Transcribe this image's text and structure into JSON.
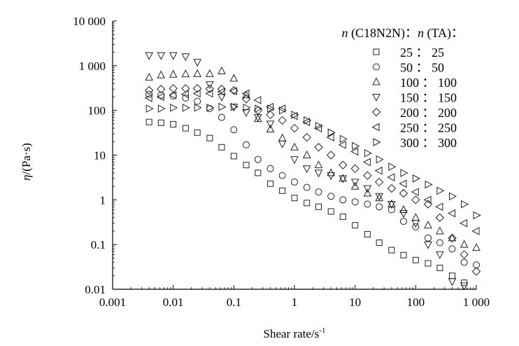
{
  "chart_data": {
    "type": "scatter",
    "title": "",
    "xlabel": "Shear rate/s",
    "xlabel_sup": "-1",
    "ylabel_italic": "η",
    "ylabel_rest": "/(Pa·s)",
    "x_scale": "log",
    "y_scale": "log",
    "xlim": [
      0.001,
      1000
    ],
    "ylim": [
      0.01,
      10000
    ],
    "x_ticks": [
      0.001,
      0.01,
      0.1,
      1,
      10,
      100,
      1000
    ],
    "x_tick_labels": [
      "0.001",
      "0.01",
      "0.1",
      "1",
      "10",
      "100",
      "1 000"
    ],
    "y_ticks": [
      0.01,
      0.1,
      1,
      10,
      100,
      1000,
      10000
    ],
    "y_tick_labels": [
      "0.01",
      "0.1",
      "1",
      "10",
      "100",
      "1 000",
      "10 000"
    ],
    "grid": false,
    "legend_position": "top-right",
    "legend_title": {
      "n1": "n",
      "mid": " (C18N2N)",
      "colon": "：",
      "n2": "n",
      "tail": " (TA)",
      "end": "："
    },
    "series": [
      {
        "name": "25 ： 25",
        "marker": "square",
        "points": [
          [
            0.004,
            55
          ],
          [
            0.0063,
            53
          ],
          [
            0.01,
            49
          ],
          [
            0.016,
            40
          ],
          [
            0.025,
            32
          ],
          [
            0.04,
            24
          ],
          [
            0.063,
            15
          ],
          [
            0.1,
            9.5
          ],
          [
            0.16,
            6
          ],
          [
            0.25,
            4
          ],
          [
            0.4,
            2.3
          ],
          [
            0.63,
            1.6
          ],
          [
            1,
            1.1
          ],
          [
            1.6,
            0.85
          ],
          [
            2.5,
            0.7
          ],
          [
            4,
            0.55
          ],
          [
            6.3,
            0.42
          ],
          [
            10,
            0.27
          ],
          [
            16,
            0.17
          ],
          [
            25,
            0.11
          ],
          [
            40,
            0.075
          ],
          [
            63,
            0.058
          ],
          [
            100,
            0.045
          ],
          [
            160,
            0.038
          ],
          [
            250,
            0.03
          ],
          [
            400,
            0.02
          ],
          [
            630,
            0.014
          ]
        ]
      },
      {
        "name": "50 ： 50",
        "marker": "circle",
        "points": [
          [
            0.004,
            230
          ],
          [
            0.0063,
            220
          ],
          [
            0.01,
            210
          ],
          [
            0.016,
            190
          ],
          [
            0.025,
            160
          ],
          [
            0.04,
            110
          ],
          [
            0.063,
            70
          ],
          [
            0.1,
            37
          ],
          [
            0.16,
            17
          ],
          [
            0.25,
            8
          ],
          [
            0.4,
            5
          ],
          [
            0.63,
            3.5
          ],
          [
            1,
            2.5
          ],
          [
            1.6,
            1.9
          ],
          [
            2.5,
            1.5
          ],
          [
            4,
            1.2
          ],
          [
            6.3,
            1.0
          ],
          [
            10,
            0.9
          ],
          [
            16,
            0.8
          ],
          [
            25,
            0.7
          ],
          [
            40,
            0.6
          ],
          [
            63,
            0.33
          ],
          [
            100,
            0.25
          ],
          [
            160,
            0.14
          ],
          [
            250,
            0.11
          ],
          [
            400,
            0.08
          ],
          [
            630,
            0.04
          ],
          [
            1000,
            0.035
          ]
        ]
      },
      {
        "name": "100 ： 100",
        "marker": "triangle-up",
        "points": [
          [
            0.004,
            550
          ],
          [
            0.0063,
            620
          ],
          [
            0.01,
            640
          ],
          [
            0.016,
            650
          ],
          [
            0.025,
            660
          ],
          [
            0.04,
            660
          ],
          [
            0.063,
            760
          ],
          [
            0.1,
            520
          ],
          [
            0.16,
            220
          ],
          [
            0.25,
            65
          ],
          [
            0.4,
            38
          ],
          [
            0.63,
            24
          ],
          [
            1,
            15
          ],
          [
            1.6,
            10
          ],
          [
            2.5,
            6
          ],
          [
            4,
            4
          ],
          [
            6.3,
            3
          ],
          [
            10,
            2
          ],
          [
            16,
            1.4
          ],
          [
            25,
            1.1
          ],
          [
            40,
            0.8
          ],
          [
            63,
            0.6
          ],
          [
            100,
            0.4
          ],
          [
            160,
            0.27
          ],
          [
            250,
            0.2
          ],
          [
            400,
            0.14
          ],
          [
            630,
            0.1
          ],
          [
            1000,
            0.085
          ]
        ]
      },
      {
        "name": "150 ： 150",
        "marker": "triangle-down",
        "points": [
          [
            0.004,
            1700
          ],
          [
            0.0063,
            1700
          ],
          [
            0.01,
            1700
          ],
          [
            0.016,
            1600
          ],
          [
            0.025,
            1200
          ],
          [
            0.04,
            380
          ],
          [
            0.063,
            200
          ],
          [
            0.1,
            120
          ],
          [
            0.16,
            90
          ],
          [
            0.25,
            70
          ],
          [
            0.4,
            50
          ],
          [
            0.63,
            18
          ],
          [
            1,
            8
          ],
          [
            1.6,
            5
          ],
          [
            2.5,
            4
          ],
          [
            4,
            3.5
          ],
          [
            6.3,
            3
          ],
          [
            10,
            2.5
          ],
          [
            16,
            1.8
          ],
          [
            25,
            1.2
          ],
          [
            40,
            0.8
          ],
          [
            63,
            0.5
          ],
          [
            100,
            0.3
          ],
          [
            160,
            0.1
          ],
          [
            250,
            0.06
          ],
          [
            400,
            0.015
          ],
          [
            630,
            0.012
          ]
        ]
      },
      {
        "name": "200 ： 200",
        "marker": "diamond",
        "points": [
          [
            0.004,
            280
          ],
          [
            0.0063,
            300
          ],
          [
            0.01,
            310
          ],
          [
            0.016,
            310
          ],
          [
            0.025,
            310
          ],
          [
            0.04,
            305
          ],
          [
            0.063,
            300
          ],
          [
            0.1,
            280
          ],
          [
            0.16,
            180
          ],
          [
            0.25,
            100
          ],
          [
            0.4,
            80
          ],
          [
            0.63,
            60
          ],
          [
            1,
            40
          ],
          [
            1.6,
            25
          ],
          [
            2.5,
            15
          ],
          [
            4,
            10
          ],
          [
            6.3,
            6
          ],
          [
            10,
            5
          ],
          [
            16,
            3.5
          ],
          [
            25,
            2.5
          ],
          [
            40,
            1.8
          ],
          [
            63,
            1.4
          ],
          [
            100,
            1.0
          ],
          [
            160,
            0.8
          ],
          [
            250,
            0.4
          ],
          [
            400,
            0.14
          ],
          [
            630,
            0.06
          ],
          [
            1000,
            0.025
          ]
        ]
      },
      {
        "name": "250 ： 250",
        "marker": "triangle-left",
        "points": [
          [
            0.004,
            190
          ],
          [
            0.0063,
            200
          ],
          [
            0.01,
            220
          ],
          [
            0.016,
            230
          ],
          [
            0.025,
            240
          ],
          [
            0.04,
            240
          ],
          [
            0.063,
            260
          ],
          [
            0.1,
            270
          ],
          [
            0.16,
            240
          ],
          [
            0.25,
            170
          ],
          [
            0.4,
            120
          ],
          [
            0.63,
            110
          ],
          [
            1,
            75
          ],
          [
            1.6,
            55
          ],
          [
            2.5,
            40
          ],
          [
            4,
            25
          ],
          [
            6.3,
            17
          ],
          [
            10,
            12
          ],
          [
            16,
            7
          ],
          [
            25,
            4.5
          ],
          [
            40,
            3.2
          ],
          [
            63,
            2.3
          ],
          [
            100,
            1.5
          ],
          [
            160,
            1.0
          ],
          [
            250,
            0.7
          ],
          [
            400,
            0.5
          ],
          [
            630,
            0.3
          ],
          [
            1000,
            0.2
          ]
        ]
      },
      {
        "name": "300 ： 300",
        "marker": "triangle-right",
        "points": [
          [
            0.004,
            110
          ],
          [
            0.0063,
            110
          ],
          [
            0.01,
            115
          ],
          [
            0.016,
            115
          ],
          [
            0.025,
            115
          ],
          [
            0.04,
            115
          ],
          [
            0.063,
            120
          ],
          [
            0.1,
            120
          ],
          [
            0.16,
            115
          ],
          [
            0.25,
            110
          ],
          [
            0.4,
            110
          ],
          [
            0.63,
            100
          ],
          [
            1,
            80
          ],
          [
            1.6,
            60
          ],
          [
            2.5,
            45
          ],
          [
            4,
            32
          ],
          [
            6.3,
            23
          ],
          [
            10,
            16
          ],
          [
            16,
            11
          ],
          [
            25,
            8
          ],
          [
            40,
            5.5
          ],
          [
            63,
            4
          ],
          [
            100,
            3
          ],
          [
            160,
            2.2
          ],
          [
            250,
            1.6
          ],
          [
            400,
            1.2
          ],
          [
            630,
            0.8
          ],
          [
            1000,
            0.45
          ]
        ]
      }
    ]
  }
}
